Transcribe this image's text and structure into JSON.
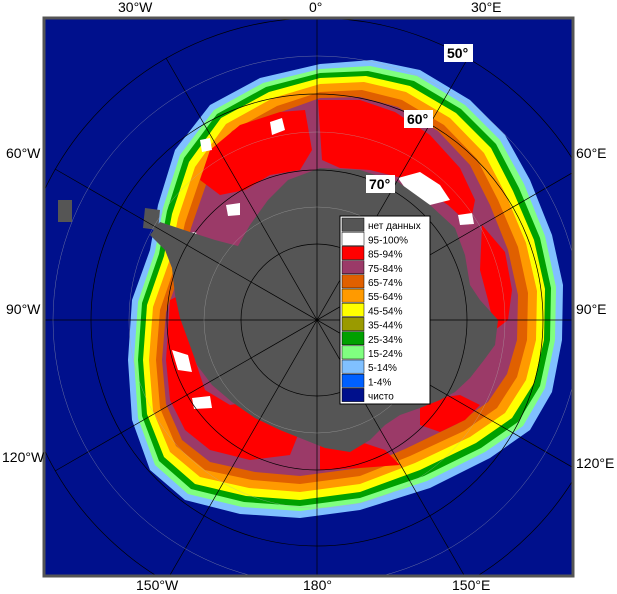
{
  "colors": {
    "ocean": "#00108c",
    "frame": "#555555",
    "no_data": "#555555",
    "c95_100": "#ffffff",
    "c85_94": "#ff0000",
    "c75_84": "#9b3a68",
    "c65_74": "#e06000",
    "c55_64": "#ff9a00",
    "c45_54": "#ffff00",
    "c35_44": "#9a9a00",
    "c25_34": "#00a000",
    "c15_24": "#80ff80",
    "c5_14": "#80c0ff",
    "c1_4": "#0060ff",
    "clear": "#00108c",
    "grid": "#b0b0b0"
  },
  "longitude_labels": {
    "w30": "30°W",
    "zero": "0°",
    "e30": "30°E",
    "w60": "60°W",
    "e60": "60°E",
    "w90": "90°W",
    "e90": "90°E",
    "w120": "120°W",
    "e120": "120°E",
    "w150": "150°W",
    "d180": "180°",
    "e150": "150°E"
  },
  "latitude_labels": {
    "l50": "50°",
    "l60": "60°",
    "l70": "70°"
  },
  "legend": {
    "items": [
      {
        "label": "нет данных",
        "color": "#555555"
      },
      {
        "label": "95-100%",
        "color": "#ffffff"
      },
      {
        "label": "85-94%",
        "color": "#ff0000"
      },
      {
        "label": "75-84%",
        "color": "#9b3a68"
      },
      {
        "label": "65-74%",
        "color": "#e06000"
      },
      {
        "label": "55-64%",
        "color": "#ff9a00"
      },
      {
        "label": "45-54%",
        "color": "#ffff00"
      },
      {
        "label": "35-44%",
        "color": "#9a9a00"
      },
      {
        "label": "25-34%",
        "color": "#00a000"
      },
      {
        "label": "15-24%",
        "color": "#80ff80"
      },
      {
        "label": "5-14%",
        "color": "#80c0ff"
      },
      {
        "label": "1-4%",
        "color": "#0060ff"
      },
      {
        "label": "чисто",
        "color": "#00108c"
      }
    ]
  }
}
